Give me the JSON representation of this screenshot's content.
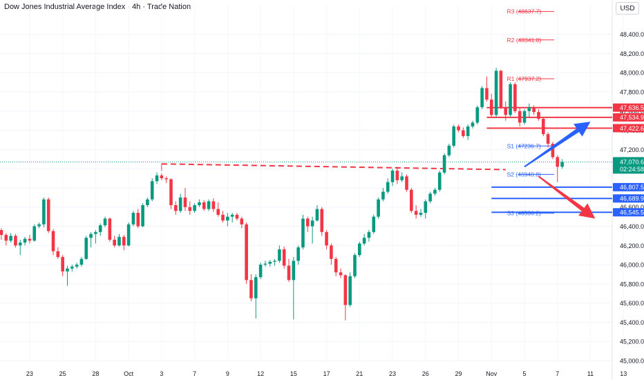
{
  "header": {
    "title": "Dow Jones Industrial Average Index · 4h · Trade Nation",
    "currency": "USD"
  },
  "chart_data": {
    "type": "candlestick",
    "title": "Dow Jones Industrial Average Index · 4h · Trade Nation",
    "ylim": [
      45000,
      48700
    ],
    "y_ticks": [
      45000,
      45200,
      45400,
      45600,
      45800,
      46000,
      46200,
      46400,
      46600,
      46800,
      47000,
      47200,
      47400,
      47600,
      47800,
      48000,
      48200,
      48400
    ],
    "y_tick_labels": [
      "45,000.0",
      "45,200.0",
      "45,400.0",
      "45,600.0",
      "45,800.0",
      "46,000.0",
      "46,200.0",
      "46,400.0",
      "46,600.0",
      "46,800.0",
      "47,000.0",
      "47,200.0",
      "47,400.0",
      "47,600.0",
      "47,800.0",
      "48,000.0",
      "48,200.0",
      "48,400.0"
    ],
    "x_labels": [
      "23",
      "25",
      "28",
      "Oct",
      "3",
      "7",
      "9",
      "12",
      "15",
      "17",
      "21",
      "23",
      "26",
      "29",
      "Nov",
      "5",
      "7",
      "11",
      "13"
    ],
    "x_label_bars": [
      6,
      13,
      20,
      27,
      34,
      41,
      48,
      55,
      62,
      69,
      76,
      83,
      90,
      97,
      104,
      111,
      118,
      125,
      132
    ],
    "current_price": {
      "label": "47,070.6",
      "countdown": "02:24:58",
      "value": 47070.6
    },
    "pivots": [
      {
        "label": "R3 (48637.7)",
        "value": 48637.7,
        "from_bar": 102
      },
      {
        "label": "R2 (48341.8)",
        "value": 48341.8,
        "from_bar": 102
      },
      {
        "label": "R1 (47937.2)",
        "value": 47937.2,
        "from_bar": 102
      },
      {
        "label": "S1 (47236.7)",
        "value": 47236.7,
        "from_bar": 102
      },
      {
        "label": "S2 (46940.8)",
        "value": 46940.8,
        "from_bar": 102
      },
      {
        "label": "S3 (46536.2)",
        "value": 46536.2,
        "from_bar": 102
      }
    ],
    "resistance_levels": [
      {
        "label": "47,636.5",
        "value": 47636.5
      },
      {
        "label": "47,534.9",
        "value": 47534.9
      },
      {
        "label": "47,422.6",
        "value": 47422.6
      }
    ],
    "support_levels": [
      {
        "label": "46,807.5",
        "value": 46807.5
      },
      {
        "label": "46,689.9",
        "value": 46689.9
      },
      {
        "label": "46,545.5",
        "value": 46545.5
      }
    ],
    "breakout_line": {
      "value_start": 47050,
      "value_end": 46990,
      "from_bar": 34,
      "to_bar": 107
    },
    "arrows": [
      {
        "direction": "up",
        "from_bar": 111,
        "from_value": 47020,
        "to_bar": 125,
        "to_value": 47490
      },
      {
        "direction": "down",
        "from_bar": 114,
        "from_value": 46920,
        "to_bar": 126,
        "to_value": 46480
      }
    ],
    "candles_ohlc": [
      [
        46360,
        46380,
        46260,
        46310
      ],
      [
        46310,
        46330,
        46200,
        46250
      ],
      [
        46250,
        46330,
        46230,
        46300
      ],
      [
        46300,
        46320,
        46180,
        46200
      ],
      [
        46200,
        46260,
        46100,
        46230
      ],
      [
        46230,
        46290,
        46200,
        46270
      ],
      [
        46270,
        46310,
        46220,
        46250
      ],
      [
        46250,
        46420,
        46240,
        46400
      ],
      [
        46400,
        46440,
        46380,
        46420
      ],
      [
        46420,
        46700,
        46390,
        46680
      ],
      [
        46680,
        46700,
        46330,
        46350
      ],
      [
        46350,
        46370,
        46100,
        46140
      ],
      [
        46140,
        46180,
        46060,
        46080
      ],
      [
        46080,
        46100,
        45880,
        45930
      ],
      [
        45930,
        45990,
        45780,
        45960
      ],
      [
        45960,
        46000,
        45930,
        45980
      ],
      [
        45980,
        46020,
        45960,
        46000
      ],
      [
        46000,
        46080,
        45980,
        46060
      ],
      [
        46060,
        46300,
        46050,
        46280
      ],
      [
        46280,
        46340,
        46180,
        46320
      ],
      [
        46320,
        46360,
        46220,
        46340
      ],
      [
        46340,
        46430,
        46300,
        46410
      ],
      [
        46410,
        46500,
        46390,
        46480
      ],
      [
        46480,
        46490,
        46240,
        46260
      ],
      [
        46260,
        46300,
        46180,
        46200
      ],
      [
        46200,
        46320,
        46190,
        46290
      ],
      [
        46290,
        46310,
        46150,
        46200
      ],
      [
        46200,
        46440,
        46190,
        46420
      ],
      [
        46420,
        46560,
        46400,
        46540
      ],
      [
        46540,
        46580,
        46380,
        46400
      ],
      [
        46400,
        46640,
        46390,
        46620
      ],
      [
        46620,
        46700,
        46600,
        46680
      ],
      [
        46680,
        46900,
        46660,
        46870
      ],
      [
        46870,
        46960,
        46840,
        46930
      ],
      [
        46930,
        46950,
        46880,
        46900
      ],
      [
        46900,
        46920,
        46850,
        46890
      ],
      [
        46890,
        46900,
        46580,
        46620
      ],
      [
        46620,
        46660,
        46520,
        46560
      ],
      [
        46560,
        46740,
        46540,
        46700
      ],
      [
        46700,
        46800,
        46560,
        46600
      ],
      [
        46600,
        46660,
        46520,
        46560
      ],
      [
        46560,
        46640,
        46540,
        46620
      ],
      [
        46620,
        46680,
        46600,
        46650
      ],
      [
        46650,
        46670,
        46560,
        46580
      ],
      [
        46580,
        46680,
        46560,
        46660
      ],
      [
        46660,
        46690,
        46550,
        46580
      ],
      [
        46580,
        46650,
        46500,
        46520
      ],
      [
        46520,
        46560,
        46440,
        46460
      ],
      [
        46460,
        46540,
        46400,
        46500
      ],
      [
        46500,
        46540,
        46440,
        46520
      ],
      [
        46520,
        46540,
        46460,
        46480
      ],
      [
        46480,
        46500,
        46380,
        46420
      ],
      [
        46420,
        46440,
        45800,
        45840
      ],
      [
        45840,
        45900,
        45620,
        45650
      ],
      [
        45650,
        45900,
        45440,
        45870
      ],
      [
        45870,
        46020,
        45850,
        46000
      ],
      [
        46000,
        46040,
        45980,
        46010
      ],
      [
        46010,
        46050,
        45980,
        46030
      ],
      [
        46030,
        46060,
        45990,
        46040
      ],
      [
        46040,
        46200,
        46020,
        46160
      ],
      [
        46160,
        46190,
        45960,
        45990
      ],
      [
        45990,
        46060,
        45820,
        45840
      ],
      [
        45840,
        46080,
        45430,
        46040
      ],
      [
        46040,
        46200,
        46000,
        46180
      ],
      [
        46180,
        46520,
        46160,
        46480
      ],
      [
        46480,
        46500,
        46340,
        46400
      ],
      [
        46400,
        46500,
        46220,
        46460
      ],
      [
        46460,
        46620,
        46450,
        46580
      ],
      [
        46580,
        46600,
        46300,
        46340
      ],
      [
        46340,
        46360,
        46160,
        46200
      ],
      [
        46200,
        46220,
        46000,
        46060
      ],
      [
        46060,
        46080,
        45880,
        45920
      ],
      [
        45920,
        45960,
        45860,
        45890
      ],
      [
        45890,
        45900,
        45420,
        45580
      ],
      [
        45580,
        45920,
        45560,
        45880
      ],
      [
        45880,
        46120,
        45860,
        46100
      ],
      [
        46100,
        46240,
        46080,
        46220
      ],
      [
        46220,
        46320,
        46200,
        46280
      ],
      [
        46280,
        46360,
        46240,
        46340
      ],
      [
        46340,
        46520,
        46320,
        46500
      ],
      [
        46500,
        46700,
        46480,
        46680
      ],
      [
        46680,
        46800,
        46660,
        46760
      ],
      [
        46760,
        46900,
        46740,
        46860
      ],
      [
        46860,
        47000,
        46820,
        46980
      ],
      [
        46980,
        47020,
        46840,
        46880
      ],
      [
        46880,
        46960,
        46860,
        46920
      ],
      [
        46920,
        46940,
        46760,
        46780
      ],
      [
        46780,
        46800,
        46540,
        46560
      ],
      [
        46560,
        46620,
        46480,
        46520
      ],
      [
        46520,
        46580,
        46500,
        46540
      ],
      [
        46540,
        46680,
        46480,
        46660
      ],
      [
        46660,
        46760,
        46640,
        46740
      ],
      [
        46740,
        46800,
        46720,
        46780
      ],
      [
        46780,
        46980,
        46760,
        46960
      ],
      [
        46960,
        47160,
        46940,
        47140
      ],
      [
        47140,
        47260,
        47120,
        47240
      ],
      [
        47240,
        47460,
        47220,
        47440
      ],
      [
        47440,
        47460,
        47380,
        47400
      ],
      [
        47400,
        47430,
        47320,
        47340
      ],
      [
        47340,
        47460,
        47300,
        47440
      ],
      [
        47440,
        47500,
        47420,
        47480
      ],
      [
        47480,
        47660,
        47460,
        47640
      ],
      [
        47640,
        47860,
        47620,
        47840
      ],
      [
        47840,
        47960,
        47700,
        47720
      ],
      [
        47720,
        47780,
        47540,
        47560
      ],
      [
        47560,
        48050,
        47540,
        48020
      ],
      [
        48020,
        48030,
        47620,
        47640
      ],
      [
        47640,
        47700,
        47500,
        47560
      ],
      [
        47560,
        47900,
        47540,
        47880
      ],
      [
        47880,
        47900,
        47580,
        47600
      ],
      [
        47600,
        47640,
        47440,
        47480
      ],
      [
        47480,
        47620,
        47460,
        47600
      ],
      [
        47600,
        47680,
        47540,
        47640
      ],
      [
        47640,
        47660,
        47560,
        47590
      ],
      [
        47590,
        47620,
        47500,
        47520
      ],
      [
        47520,
        47540,
        47340,
        47360
      ],
      [
        47360,
        47380,
        47220,
        47260
      ],
      [
        47260,
        47280,
        47100,
        47120
      ],
      [
        47120,
        47140,
        46860,
        47020
      ],
      [
        47020,
        47100,
        47000,
        47070
      ]
    ]
  }
}
